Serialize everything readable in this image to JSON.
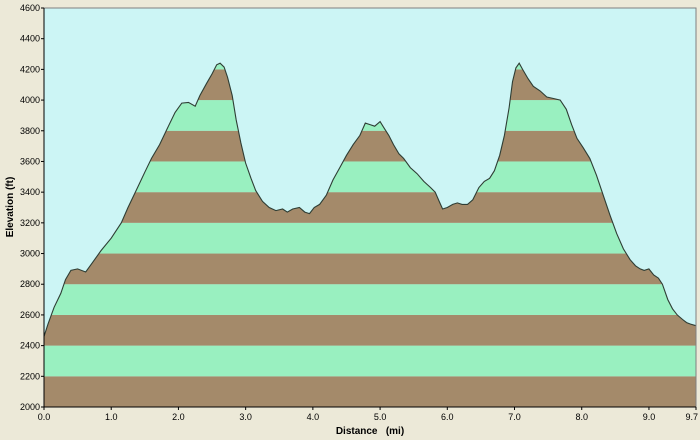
{
  "chart_data": {
    "type": "area",
    "title": "",
    "xlabel": "Distance   (mi)",
    "ylabel": "Elevation (ft)",
    "xlim": [
      0,
      9.7
    ],
    "ylim": [
      2000,
      4600
    ],
    "x_ticks": [
      0.0,
      1.0,
      2.0,
      3.0,
      4.0,
      5.0,
      6.0,
      7.0,
      8.0,
      9.0,
      9.7
    ],
    "x_tick_labels": [
      "0.0",
      "1.0",
      "2.0",
      "3.0",
      "4.0",
      "5.0",
      "6.0",
      "7.0",
      "8.0",
      "9.0",
      "9.7"
    ],
    "y_ticks": [
      2000,
      2200,
      2400,
      2600,
      2800,
      3000,
      3200,
      3400,
      3600,
      3800,
      4000,
      4200,
      4400,
      4600
    ],
    "y_tick_labels": [
      "2000",
      "2200",
      "2400",
      "2600",
      "2800",
      "3000",
      "3200",
      "3400",
      "3600",
      "3800",
      "4000",
      "4200",
      "4400",
      "4600"
    ],
    "grid": false,
    "colors": {
      "sky": "#ccf5f5",
      "band_brown": "#a48a6a",
      "band_green": "#99f0c0",
      "outline": "#2e3d34",
      "frame_bg": "#ece9d8"
    },
    "series": [
      {
        "x": [
          0.0,
          0.06,
          0.15,
          0.25,
          0.32,
          0.4,
          0.5,
          0.62,
          0.72,
          0.85,
          1.0,
          1.15,
          1.25,
          1.38,
          1.5,
          1.6,
          1.72,
          1.85,
          1.95,
          2.05,
          2.15,
          2.25,
          2.32,
          2.42,
          2.5,
          2.57,
          2.62,
          2.68,
          2.73,
          2.8,
          2.86,
          2.93,
          3.0,
          3.08,
          3.15,
          3.25,
          3.35,
          3.45,
          3.55,
          3.62,
          3.7,
          3.8,
          3.88,
          3.95,
          4.02,
          4.1,
          4.2,
          4.3,
          4.4,
          4.5,
          4.6,
          4.7,
          4.78,
          4.85,
          4.92,
          5.0,
          5.07,
          5.13,
          5.2,
          5.28,
          5.35,
          5.45,
          5.55,
          5.65,
          5.75,
          5.82,
          5.88,
          5.93,
          6.0,
          6.08,
          6.15,
          6.22,
          6.3,
          6.38,
          6.47,
          6.55,
          6.63,
          6.7,
          6.78,
          6.85,
          6.92,
          6.97,
          7.02,
          7.07,
          7.12,
          7.2,
          7.28,
          7.38,
          7.48,
          7.58,
          7.68,
          7.77,
          7.85,
          7.93,
          8.02,
          8.12,
          8.22,
          8.32,
          8.42,
          8.52,
          8.62,
          8.72,
          8.8,
          8.87,
          8.93,
          9.0,
          9.07,
          9.14,
          9.2,
          9.28,
          9.35,
          9.42,
          9.5,
          9.56,
          9.62,
          9.7
        ],
        "y": [
          2460,
          2540,
          2650,
          2740,
          2830,
          2890,
          2900,
          2880,
          2940,
          3020,
          3100,
          3200,
          3300,
          3420,
          3530,
          3620,
          3710,
          3830,
          3920,
          3980,
          3985,
          3960,
          4030,
          4110,
          4170,
          4230,
          4240,
          4215,
          4150,
          4030,
          3870,
          3720,
          3590,
          3490,
          3410,
          3340,
          3300,
          3280,
          3290,
          3270,
          3290,
          3300,
          3270,
          3260,
          3300,
          3320,
          3380,
          3480,
          3560,
          3640,
          3710,
          3770,
          3850,
          3840,
          3830,
          3860,
          3810,
          3770,
          3710,
          3650,
          3620,
          3560,
          3520,
          3470,
          3430,
          3400,
          3340,
          3290,
          3300,
          3320,
          3330,
          3320,
          3320,
          3350,
          3430,
          3470,
          3490,
          3540,
          3640,
          3770,
          3950,
          4120,
          4210,
          4240,
          4200,
          4140,
          4090,
          4060,
          4020,
          4010,
          4000,
          3940,
          3840,
          3750,
          3690,
          3620,
          3510,
          3380,
          3250,
          3130,
          3030,
          2960,
          2920,
          2900,
          2890,
          2900,
          2860,
          2840,
          2800,
          2700,
          2640,
          2600,
          2570,
          2550,
          2540,
          2530
        ]
      }
    ]
  }
}
